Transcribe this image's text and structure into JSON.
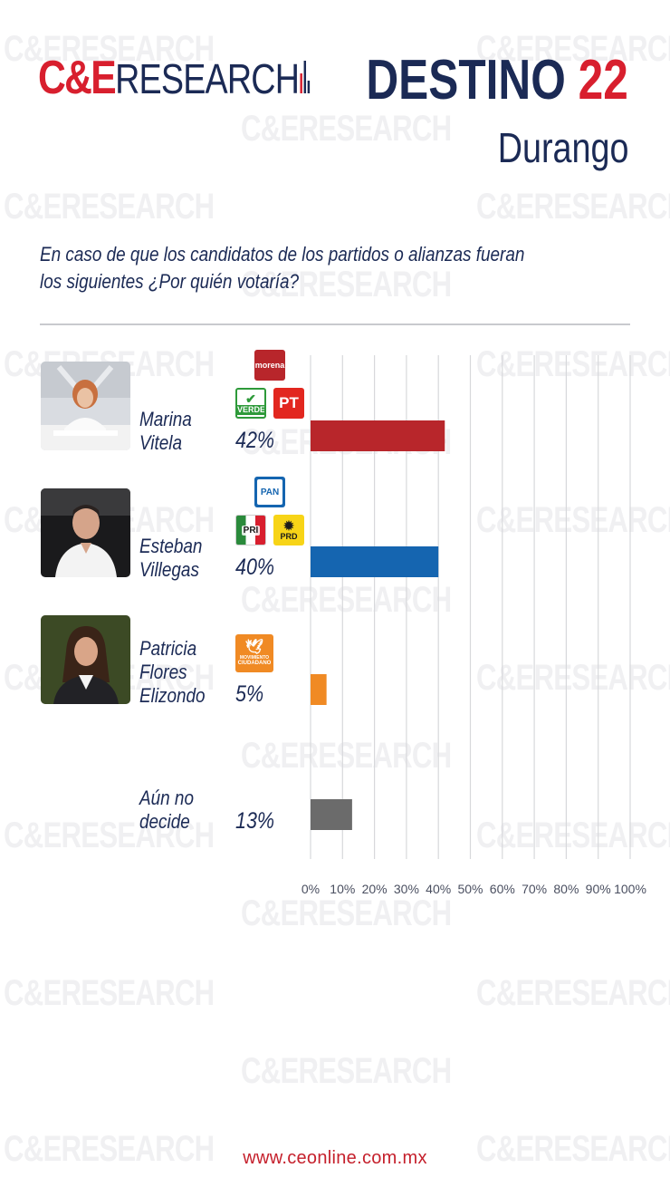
{
  "brand": {
    "ce": "C&E",
    "research": "RESEARCH",
    "watermark": "C&ERESEARCH"
  },
  "header": {
    "title": "DESTINO",
    "title_number": "22",
    "state": "Durango"
  },
  "question": "En caso de que los candidatos de los partidos o alianzas fueran los siguientes ¿Por quién votaría?",
  "footer": {
    "url": "www.ceonline.com.mx"
  },
  "colors": {
    "brand_red": "#d81f2e",
    "navy": "#1b2a55",
    "morena": "#b8262b",
    "pan": "#1565b0",
    "mc": "#f08a24",
    "undecided": "#6b6b6b"
  },
  "candidates": [
    {
      "name_lines": [
        "Marina",
        "Vitela"
      ],
      "pct_label": "42%",
      "parties": [
        "MORENA",
        "VERDE",
        "PT"
      ]
    },
    {
      "name_lines": [
        "Esteban",
        "Villegas"
      ],
      "pct_label": "40%",
      "parties": [
        "PAN",
        "PRI",
        "PRD"
      ]
    },
    {
      "name_lines": [
        "Patricia",
        "Flores",
        "Elizondo"
      ],
      "pct_label": "5%",
      "parties": [
        "MC"
      ]
    },
    {
      "name_lines": [
        "Aún no",
        "decide"
      ],
      "pct_label": "13%",
      "parties": []
    }
  ],
  "logos": {
    "morena": "morena",
    "verde": "VERDE",
    "pt": "PT",
    "pan": "PAN",
    "pri": "PRI",
    "prd": "PRD",
    "mc_line1": "MOVIMIENTO",
    "mc_line2": "CIUDADANO"
  },
  "chart_data": {
    "type": "bar",
    "orientation": "horizontal",
    "categories": [
      "Marina Vitela",
      "Esteban Villegas",
      "Patricia Flores Elizondo",
      "Aún no decide"
    ],
    "values": [
      42,
      40,
      5,
      13
    ],
    "colors": [
      "#b8262b",
      "#1565b0",
      "#f08a24",
      "#6b6b6b"
    ],
    "xlim": [
      0,
      100
    ],
    "xticks": [
      "0%",
      "10%",
      "20%",
      "30%",
      "40%",
      "50%",
      "60%",
      "70%",
      "80%",
      "90%",
      "100%"
    ],
    "grid": true
  }
}
